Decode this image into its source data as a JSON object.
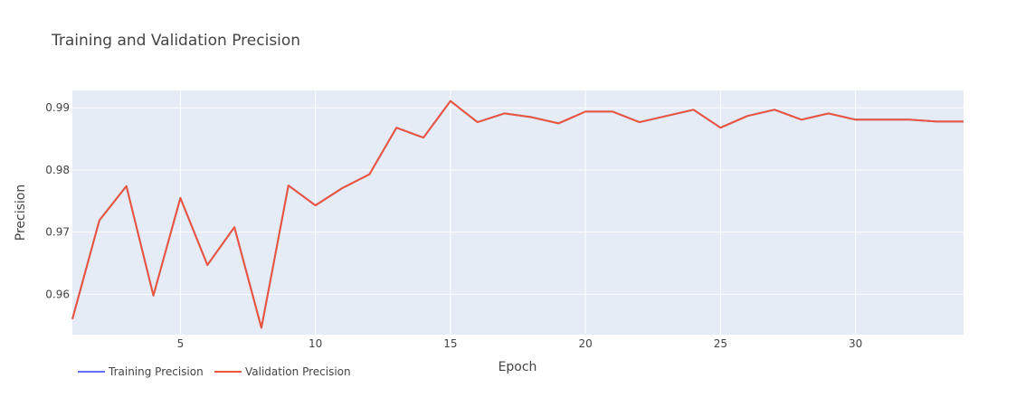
{
  "chart_data": {
    "type": "line",
    "title": "Training and Validation Precision",
    "xlabel": "Epoch",
    "ylabel": "Precision",
    "xlim": [
      1,
      34
    ],
    "ylim": [
      0.9535,
      0.9928
    ],
    "x_ticks": [
      5,
      10,
      15,
      20,
      25,
      30
    ],
    "y_ticks": [
      0.96,
      0.97,
      0.98,
      0.99
    ],
    "x_tick_labels": [
      "5",
      "10",
      "15",
      "20",
      "25",
      "30"
    ],
    "y_tick_labels": [
      "0.96",
      "0.97",
      "0.98",
      "0.99"
    ],
    "grid": true,
    "legend_position": "bottom-left",
    "x": [
      1,
      2,
      3,
      4,
      5,
      6,
      7,
      8,
      9,
      10,
      11,
      12,
      13,
      14,
      15,
      16,
      17,
      18,
      19,
      20,
      21,
      22,
      23,
      24,
      25,
      26,
      27,
      28,
      29,
      30,
      31,
      32,
      33,
      34
    ],
    "series": [
      {
        "name": "Training Precision",
        "color": "#636efa",
        "values": [
          0.956,
          0.9719,
          0.9774,
          0.9598,
          0.9755,
          0.9647,
          0.9708,
          0.9546,
          0.9775,
          0.9743,
          0.9771,
          0.9793,
          0.9868,
          0.9852,
          0.9911,
          0.9877,
          0.9891,
          0.9885,
          0.9875,
          0.9894,
          0.9894,
          0.9877,
          0.9887,
          0.9897,
          0.9868,
          0.9887,
          0.9897,
          0.9881,
          0.9891,
          0.9881,
          0.9881,
          0.9881,
          0.9878,
          0.9878
        ]
      },
      {
        "name": "Validation Precision",
        "color": "#ef553b",
        "values": [
          0.956,
          0.9719,
          0.9774,
          0.9598,
          0.9755,
          0.9647,
          0.9708,
          0.9546,
          0.9775,
          0.9743,
          0.9771,
          0.9793,
          0.9868,
          0.9852,
          0.9911,
          0.9877,
          0.9891,
          0.9885,
          0.9875,
          0.9894,
          0.9894,
          0.9877,
          0.9887,
          0.9897,
          0.9868,
          0.9887,
          0.9897,
          0.9881,
          0.9891,
          0.9881,
          0.9881,
          0.9881,
          0.9878,
          0.9878
        ]
      }
    ],
    "colors": {
      "plot_background": "#e5ecf6",
      "grid": "#ffffff",
      "text": "#444444"
    }
  }
}
